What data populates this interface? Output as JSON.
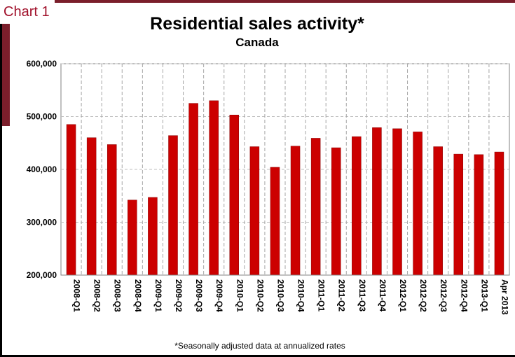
{
  "chart_label": "Chart 1",
  "footnote": "*Seasonally adjusted data at annualized rates",
  "chart_data": {
    "type": "bar",
    "title": "Residential sales activity*",
    "subtitle": "Canada",
    "xlabel": "",
    "ylabel": "",
    "ylim": [
      200000,
      600000
    ],
    "yticks": [
      200000,
      300000,
      400000,
      500000,
      600000
    ],
    "ytick_labels": [
      "200,000",
      "300,000",
      "400,000",
      "500,000",
      "600,000"
    ],
    "grid": true,
    "bar_color": "#cc0000",
    "categories": [
      "2008-Q1",
      "2008-Q2",
      "2008-Q3",
      "2008-Q4",
      "2009-Q1",
      "2009-Q2",
      "2009-Q3",
      "2009-Q4",
      "2010-Q1",
      "2010-Q2",
      "2010-Q3",
      "2010-Q4",
      "2011-Q1",
      "2011-Q2",
      "2011-Q3",
      "2011-Q4",
      "2012-Q1",
      "2012-Q2",
      "2012-Q3",
      "2012-Q4",
      "2013-Q1",
      "Apr 2013"
    ],
    "values": [
      485000,
      460000,
      447000,
      342000,
      347000,
      464000,
      525000,
      530000,
      503000,
      443000,
      404000,
      444000,
      459000,
      441000,
      462000,
      479000,
      477000,
      471000,
      443000,
      429000,
      428000,
      433000
    ]
  }
}
